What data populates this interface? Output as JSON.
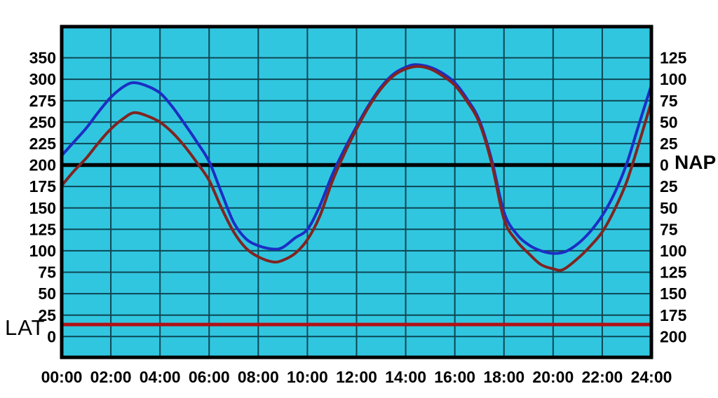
{
  "chart_data": {
    "type": "line",
    "title": "",
    "x_axis": {
      "range_hours": [
        0,
        24
      ],
      "gridline_step_hours": 2,
      "ticks": [
        "00:00",
        "02:00",
        "04:00",
        "06:00",
        "08:00",
        "10:00",
        "12:00",
        "14:00",
        "16:00",
        "18:00",
        "20:00",
        "22:00",
        "24:00"
      ]
    },
    "left_axis": {
      "units_per_gridline": 25,
      "ticks": [
        "350",
        "300",
        "275",
        "250",
        "225",
        "200",
        "175",
        "150",
        "125",
        "100",
        "75",
        "50",
        "25",
        "0"
      ]
    },
    "right_axis": {
      "units_per_gridline": 25,
      "ticks": [
        "125",
        "100",
        "75",
        "50",
        "25",
        "0",
        "25",
        "50",
        "75",
        "100",
        "125",
        "150",
        "175",
        "200"
      ]
    },
    "reference_lines": {
      "nap": {
        "label": "NAP",
        "left_scale_value": 200,
        "right_scale_value": 0,
        "color": "#000000"
      },
      "lat": {
        "label": "LAT",
        "left_scale_value": 14,
        "color": "#B01218"
      }
    },
    "series": [
      {
        "name": "blue_curve",
        "color": "#1C2EC4",
        "points": [
          [
            0,
            211
          ],
          [
            0.5,
            227
          ],
          [
            1,
            243
          ],
          [
            1.5,
            262
          ],
          [
            2,
            279
          ],
          [
            2.5,
            291
          ],
          [
            2.9,
            296
          ],
          [
            3.4,
            293
          ],
          [
            4,
            284
          ],
          [
            4.5,
            268
          ],
          [
            5,
            248
          ],
          [
            5.5,
            227
          ],
          [
            6,
            204
          ],
          [
            6.5,
            168
          ],
          [
            7,
            133
          ],
          [
            7.5,
            114
          ],
          [
            8,
            106
          ],
          [
            8.6,
            102
          ],
          [
            9,
            104
          ],
          [
            9.5,
            115
          ],
          [
            10,
            125
          ],
          [
            10.5,
            152
          ],
          [
            11,
            188
          ],
          [
            11.5,
            218
          ],
          [
            12,
            245
          ],
          [
            12.5,
            270
          ],
          [
            13,
            291
          ],
          [
            13.5,
            306
          ],
          [
            14,
            314
          ],
          [
            14.4,
            317
          ],
          [
            15,
            314
          ],
          [
            15.5,
            307
          ],
          [
            16,
            296
          ],
          [
            16.5,
            277
          ],
          [
            17,
            252
          ],
          [
            17.5,
            206
          ],
          [
            18,
            145
          ],
          [
            18.5,
            120
          ],
          [
            19,
            107
          ],
          [
            19.5,
            100
          ],
          [
            20,
            97
          ],
          [
            20.5,
            99
          ],
          [
            21,
            108
          ],
          [
            21.5,
            122
          ],
          [
            22,
            141
          ],
          [
            22.5,
            167
          ],
          [
            23,
            202
          ],
          [
            23.5,
            248
          ],
          [
            24,
            293
          ]
        ]
      },
      {
        "name": "red_curve",
        "color": "#802421",
        "points": [
          [
            0,
            176
          ],
          [
            0.5,
            193
          ],
          [
            1,
            208
          ],
          [
            1.5,
            226
          ],
          [
            2,
            242
          ],
          [
            2.5,
            254
          ],
          [
            2.95,
            261
          ],
          [
            3.5,
            257
          ],
          [
            4,
            250
          ],
          [
            4.5,
            238
          ],
          [
            5,
            222
          ],
          [
            5.5,
            203
          ],
          [
            6,
            182
          ],
          [
            6.5,
            150
          ],
          [
            7,
            122
          ],
          [
            7.5,
            103
          ],
          [
            8,
            93
          ],
          [
            8.6,
            87
          ],
          [
            9,
            89
          ],
          [
            9.5,
            97
          ],
          [
            10,
            113
          ],
          [
            10.5,
            140
          ],
          [
            11,
            180
          ],
          [
            11.5,
            213
          ],
          [
            12,
            242
          ],
          [
            12.5,
            268
          ],
          [
            13,
            289
          ],
          [
            13.5,
            304
          ],
          [
            14,
            312
          ],
          [
            14.5,
            315
          ],
          [
            15,
            312
          ],
          [
            15.5,
            304
          ],
          [
            16,
            293
          ],
          [
            16.5,
            274
          ],
          [
            17,
            249
          ],
          [
            17.5,
            202
          ],
          [
            18,
            137
          ],
          [
            18.5,
            112
          ],
          [
            19,
            97
          ],
          [
            19.5,
            84
          ],
          [
            20,
            79
          ],
          [
            20.4,
            78
          ],
          [
            21,
            91
          ],
          [
            21.5,
            105
          ],
          [
            22,
            122
          ],
          [
            22.5,
            148
          ],
          [
            23,
            181
          ],
          [
            23.5,
            226
          ],
          [
            24,
            274
          ]
        ]
      }
    ],
    "colors": {
      "plot_background": "#31C6DF",
      "grid": "#0E4654",
      "border": "#000000"
    }
  }
}
